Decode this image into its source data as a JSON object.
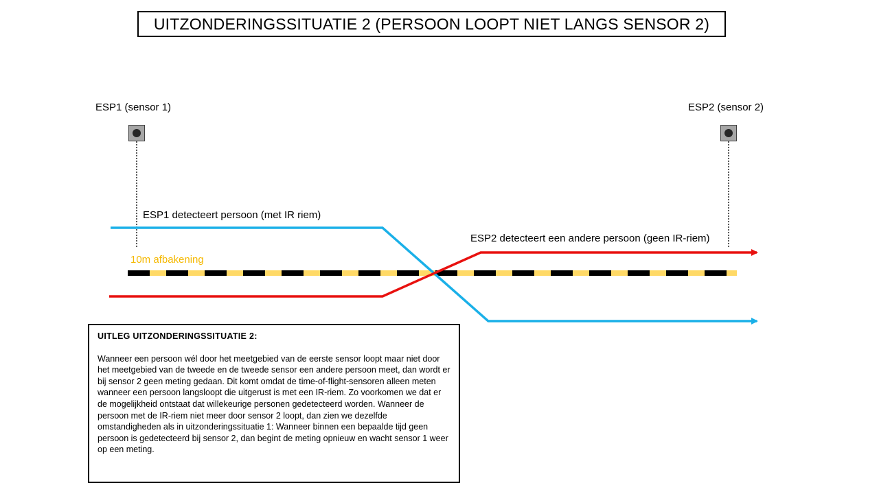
{
  "title": "UITZONDERINGSSITUATIE 2 (PERSOON LOOPT NIET LANGS SENSOR 2)",
  "sensors": {
    "sensor1_label": "ESP1 (sensor 1)",
    "sensor2_label": "ESP2 (sensor 2)"
  },
  "labels": {
    "esp1_detect": "ESP1 detecteert persoon (met IR riem)",
    "esp2_detect": "ESP2 detecteert een andere persoon (geen IR-riem)",
    "zone": "10m afbakening"
  },
  "colors": {
    "person_with_ir": "#1ab0e8",
    "other_person": "#e8110f",
    "zone_yellow": "#f5b800",
    "zone_stripe_light": "#ffd966",
    "zone_stripe_dark": "#000000"
  },
  "explanation": {
    "heading": "UITLEG UITZONDERINGSSITUATIE 2:",
    "body": "Wanneer een persoon wél door het meetgebied van de eerste sensor loopt maar niet door het meetgebied van de tweede en de tweede sensor een andere persoon meet, dan wordt er bij sensor 2 geen meting gedaan. Dit komt omdat de time-of-flight-sensoren alleen meten wanneer een persoon langsloopt die uitgerust is met een IR-riem. Zo voorkomen we dat er de mogelijkheid ontstaat dat willekeurige personen gedetecteerd worden. Wanneer de persoon met de IR-riem niet meer door sensor 2 loopt, dan zien we dezelfde omstandigheden als in uitzonderingssituatie 1: Wanneer binnen een bepaalde tijd geen persoon is gedetecteerd bij sensor 2, dan begint de meting opnieuw en wacht sensor 1 weer op een meting."
  }
}
